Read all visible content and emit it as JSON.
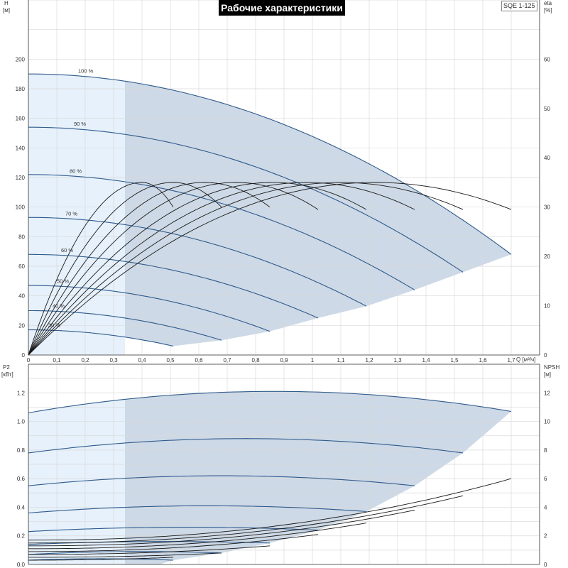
{
  "header": {
    "title": "Рабочие характеристики",
    "model": "SQE 1-125"
  },
  "colors": {
    "curve": "#2f5a8c",
    "efficiency": "#1a1a1a",
    "npsh": "#1a1a1a",
    "recommended_region": "#cdd9e6",
    "left_region": "#e6f1fb",
    "grid": "#d9d9d9"
  },
  "chart_data": [
    {
      "type": "line",
      "name": "head",
      "ylabel": "H",
      "yunit": "[м]",
      "y2label": "eta",
      "y2unit": "[%]",
      "xlabel": "Q [м³/ч]",
      "xlim": [
        0,
        1.8
      ],
      "ylim": [
        0,
        240
      ],
      "y2lim": [
        0,
        72
      ],
      "xticks": [
        "0",
        "0,1",
        "0,2",
        "0,3",
        "0,4",
        "0,5",
        "0,6",
        "0,7",
        "0,8",
        "0,9",
        "1",
        "1,1",
        "1,2",
        "1,3",
        "1,4",
        "1,5",
        "1,6",
        "1,7"
      ],
      "yticks": [
        "0",
        "20",
        "40",
        "60",
        "80",
        "100",
        "120",
        "140",
        "160",
        "180",
        "200"
      ],
      "y2ticks": [
        "0",
        "10",
        "20",
        "30",
        "40",
        "50",
        "60"
      ],
      "grid": true,
      "speed_curves": [
        {
          "label": "100 %",
          "h0": 190,
          "qmax": 1.7,
          "hend": 68
        },
        {
          "label": "90 %",
          "h0": 154,
          "qmax": 1.53,
          "hend": 56
        },
        {
          "label": "80 %",
          "h0": 122,
          "qmax": 1.36,
          "hend": 44
        },
        {
          "label": "70 %",
          "h0": 93,
          "qmax": 1.19,
          "hend": 33
        },
        {
          "label": "60 %",
          "h0": 68,
          "qmax": 1.02,
          "hend": 25
        },
        {
          "label": "50 %",
          "h0": 47,
          "qmax": 0.85,
          "hend": 16
        },
        {
          "label": "40 %",
          "h0": 30,
          "qmax": 0.68,
          "hend": 10
        },
        {
          "label": "30 %",
          "h0": 17,
          "qmax": 0.51,
          "hend": 6
        }
      ],
      "efficiency_curves": [
        {
          "qpeak": 0.4,
          "qend": 0.51,
          "eta_peak": 35,
          "eta_end": 30
        },
        {
          "qpeak": 0.51,
          "qend": 0.68,
          "eta_peak": 35,
          "eta_end": 30
        },
        {
          "qpeak": 0.62,
          "qend": 0.85,
          "eta_peak": 35,
          "eta_end": 30
        },
        {
          "qpeak": 0.73,
          "qend": 1.02,
          "eta_peak": 35,
          "eta_end": 29.5
        },
        {
          "qpeak": 0.86,
          "qend": 1.19,
          "eta_peak": 35,
          "eta_end": 29.5
        },
        {
          "qpeak": 0.98,
          "qend": 1.36,
          "eta_peak": 35,
          "eta_end": 29.5
        },
        {
          "qpeak": 1.1,
          "qend": 1.53,
          "eta_peak": 35,
          "eta_end": 29.5
        },
        {
          "qpeak": 1.22,
          "qend": 1.7,
          "eta_peak": 35,
          "eta_end": 29.5
        }
      ],
      "region_split_q": 0.34
    },
    {
      "type": "line",
      "name": "power_npsh",
      "ylabel": "P2",
      "yunit": "[кВт]",
      "y2label": "NPSH",
      "y2unit": "[м]",
      "xlim": [
        0,
        1.8
      ],
      "ylim": [
        0,
        1.4
      ],
      "y2lim": [
        0,
        14
      ],
      "yticks": [
        "0.0",
        "0.2",
        "0.4",
        "0.6",
        "0.8",
        "1.0",
        "1.2"
      ],
      "y2ticks": [
        "0",
        "2",
        "4",
        "6",
        "8",
        "10",
        "12"
      ],
      "grid": true,
      "power_curves": [
        {
          "label": "100 %",
          "p0": 1.06,
          "pmax": 1.21,
          "qmax": 1.7,
          "pend": 1.07
        },
        {
          "label": "90 %",
          "p0": 0.78,
          "pmax": 0.88,
          "qmax": 1.53,
          "pend": 0.78
        },
        {
          "label": "80 %",
          "p0": 0.55,
          "pmax": 0.62,
          "qmax": 1.36,
          "pend": 0.55
        },
        {
          "label": "70 %",
          "p0": 0.36,
          "pmax": 0.41,
          "qmax": 1.19,
          "pend": 0.37
        },
        {
          "label": "60 %",
          "p0": 0.23,
          "pmax": 0.26,
          "qmax": 1.02,
          "pend": 0.24
        },
        {
          "label": "50 %",
          "p0": 0.14,
          "pmax": 0.16,
          "qmax": 0.85,
          "pend": 0.15
        },
        {
          "label": "40 %",
          "p0": 0.07,
          "pmax": 0.09,
          "qmax": 0.68,
          "pend": 0.08
        },
        {
          "label": "30 %",
          "p0": 0.03,
          "pmax": 0.04,
          "qmax": 0.51,
          "pend": 0.03
        }
      ],
      "npsh_curves": [
        {
          "qmax": 0.51,
          "n0": 0.3,
          "nend": 0.5
        },
        {
          "qmax": 0.68,
          "n0": 0.5,
          "nend": 0.8
        },
        {
          "qmax": 0.85,
          "n0": 0.7,
          "nend": 1.3
        },
        {
          "qmax": 1.02,
          "n0": 0.9,
          "nend": 2.1
        },
        {
          "qmax": 1.19,
          "n0": 1.1,
          "nend": 2.9
        },
        {
          "qmax": 1.36,
          "n0": 1.3,
          "nend": 3.8
        },
        {
          "qmax": 1.53,
          "n0": 1.5,
          "nend": 4.8
        },
        {
          "qmax": 1.7,
          "n0": 1.7,
          "nend": 6.0
        }
      ],
      "region_split_q": 0.34
    }
  ]
}
